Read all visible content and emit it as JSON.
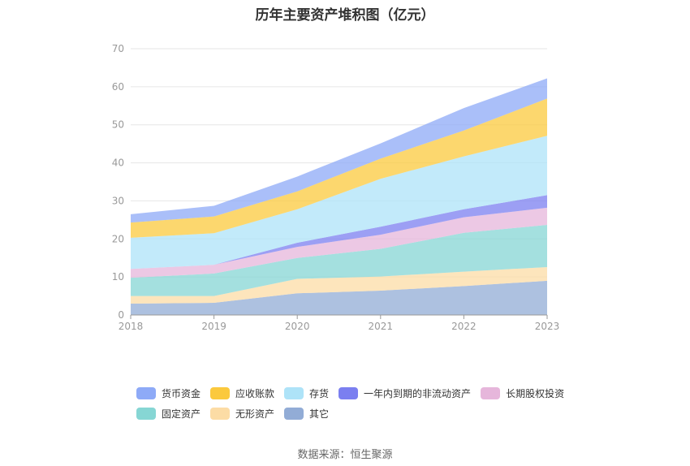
{
  "source": "数据来源：恒生聚源",
  "colors": {
    "货币资金": "#8eaaf7",
    "应收账款": "#fbc93d",
    "存货": "#aee3f8",
    "一年内到期的非流动资产": "#7b7ff0",
    "长期股权投资": "#e6b6db",
    "固定资产": "#86d6d4",
    "无形资产": "#fcdca5",
    "其它": "#92acd6"
  },
  "chart_data": {
    "type": "area",
    "stacked": true,
    "title": "历年主要资产堆积图（亿元）",
    "xlabel": "",
    "ylabel": "",
    "x": [
      "2018",
      "2019",
      "2020",
      "2021",
      "2022",
      "2023"
    ],
    "ylim": [
      0,
      70
    ],
    "yticks": [
      "0",
      "10",
      "20",
      "30",
      "40",
      "50",
      "60",
      "70"
    ],
    "grid": true,
    "legend_position": "bottom",
    "series": [
      {
        "name": "其它",
        "values": [
          3.0,
          3.2,
          5.7,
          6.4,
          7.6,
          9.0
        ]
      },
      {
        "name": "无形资产",
        "values": [
          2.0,
          1.8,
          3.8,
          3.7,
          3.8,
          3.6
        ]
      },
      {
        "name": "固定资产",
        "values": [
          4.8,
          5.9,
          5.5,
          7.3,
          10.2,
          11.1
        ]
      },
      {
        "name": "长期股权投资",
        "values": [
          2.3,
          2.3,
          2.9,
          3.7,
          4.1,
          4.5
        ]
      },
      {
        "name": "一年内到期的非流动资产",
        "values": [
          0.0,
          0.0,
          1.1,
          2.1,
          2.1,
          3.3
        ]
      },
      {
        "name": "存货",
        "values": [
          8.2,
          8.3,
          8.8,
          12.6,
          13.9,
          15.6
        ]
      },
      {
        "name": "应收账款",
        "values": [
          4.0,
          4.4,
          4.7,
          5.3,
          6.8,
          9.8
        ]
      },
      {
        "name": "货币资金",
        "values": [
          2.2,
          2.8,
          3.9,
          4.0,
          5.9,
          5.3
        ]
      }
    ],
    "legend_order": [
      "货币资金",
      "应收账款",
      "存货",
      "一年内到期的非流动资产",
      "长期股权投资",
      "固定资产",
      "无形资产",
      "其它"
    ]
  }
}
